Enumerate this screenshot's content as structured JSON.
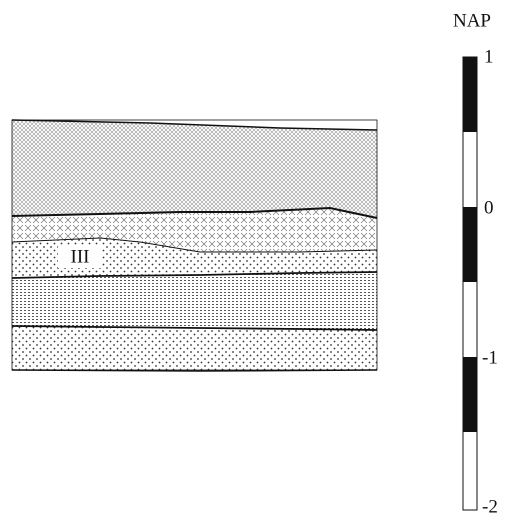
{
  "section": {
    "label": "III"
  },
  "scale": {
    "title": "NAP",
    "labels": [
      "1",
      "0",
      "-1",
      "-2"
    ]
  }
}
